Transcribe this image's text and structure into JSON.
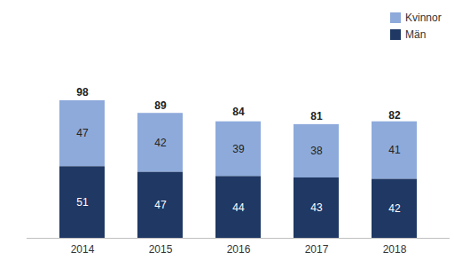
{
  "chart_data": {
    "type": "bar",
    "stacked": true,
    "data_labels": true,
    "tick_labels": "x",
    "legend": "top-right",
    "categories": [
      "2014",
      "2015",
      "2016",
      "2017",
      "2018"
    ],
    "series": [
      {
        "name": "Kvinnor",
        "color": "#8eaadb",
        "values": [
          47,
          42,
          39,
          38,
          41
        ]
      },
      {
        "name": "Män",
        "color": "#1f3864",
        "values": [
          51,
          47,
          44,
          43,
          42
        ]
      }
    ],
    "totals": [
      98,
      89,
      84,
      81,
      82
    ],
    "ylim": [
      0,
      110
    ]
  }
}
